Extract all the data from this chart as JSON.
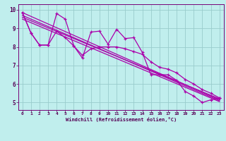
{
  "background_color": "#c0eeed",
  "line_color": "#aa00aa",
  "grid_color": "#99cccc",
  "axis_color": "#770077",
  "tick_color": "#550055",
  "xlabel": "Windchill (Refroidissement éolien,°C)",
  "xlabel_color": "#550055",
  "xlim": [
    -0.5,
    23.5
  ],
  "ylim": [
    4.6,
    10.3
  ],
  "xticks": [
    0,
    1,
    2,
    3,
    4,
    5,
    6,
    7,
    8,
    9,
    10,
    11,
    12,
    13,
    14,
    15,
    16,
    17,
    18,
    19,
    20,
    21,
    22,
    23
  ],
  "yticks": [
    5,
    6,
    7,
    8,
    9,
    10
  ],
  "noisy_x": [
    0,
    1,
    2,
    3,
    4,
    5,
    6,
    7,
    8,
    9,
    10,
    11,
    12,
    13,
    14,
    15,
    16,
    17,
    18,
    19,
    20,
    21,
    22,
    23
  ],
  "noisy_y": [
    9.85,
    8.75,
    8.1,
    8.1,
    9.8,
    9.5,
    8.05,
    7.4,
    8.8,
    8.85,
    8.15,
    8.95,
    8.45,
    8.5,
    7.7,
    6.5,
    6.5,
    6.5,
    6.2,
    5.6,
    5.35,
    5.0,
    5.15,
    5.25
  ],
  "smooth_x": [
    0,
    1,
    2,
    3,
    4,
    5,
    6,
    7,
    8,
    9,
    10,
    11,
    12,
    13,
    14,
    15,
    16,
    17,
    18,
    19,
    20,
    21,
    22,
    23
  ],
  "smooth_y": [
    9.85,
    8.75,
    8.1,
    8.1,
    8.85,
    8.5,
    8.05,
    7.55,
    7.9,
    8.0,
    8.0,
    8.0,
    7.9,
    7.75,
    7.6,
    7.2,
    6.9,
    6.8,
    6.6,
    6.25,
    6.0,
    5.7,
    5.5,
    5.25
  ],
  "trend1_x": [
    0,
    23
  ],
  "trend1_y": [
    9.85,
    5.15
  ],
  "trend2_x": [
    0,
    23
  ],
  "trend2_y": [
    9.5,
    5.05
  ],
  "trend3_x": [
    0,
    23
  ],
  "trend3_y": [
    9.7,
    5.1
  ],
  "trend4_x": [
    0,
    23
  ],
  "trend4_y": [
    9.6,
    5.2
  ]
}
